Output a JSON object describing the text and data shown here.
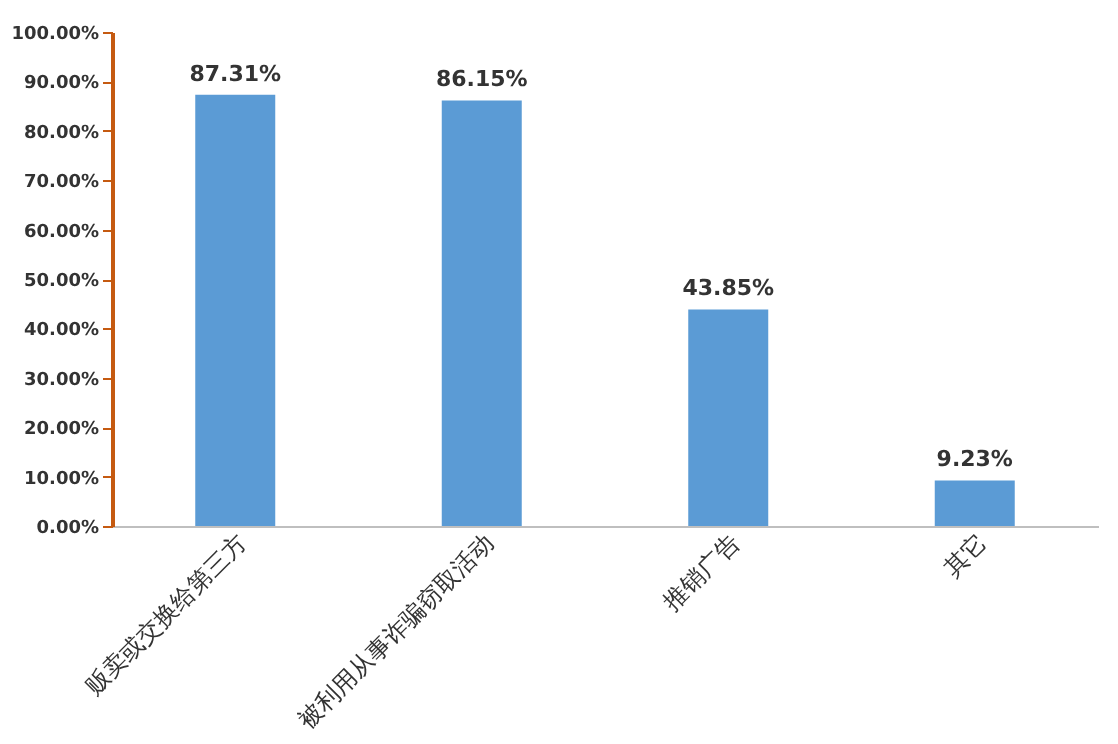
{
  "chart_data": {
    "type": "bar",
    "categories": [
      "贩卖或交换给第三方",
      "被利用从事诈骗窃取活动",
      "推销广告",
      "其它"
    ],
    "values": [
      87.31,
      86.15,
      43.85,
      9.23
    ],
    "value_labels": [
      "87.31%",
      "86.15%",
      "43.85%",
      "9.23%"
    ],
    "color": "#5b9bd5",
    "ylim": [
      0,
      100
    ],
    "yticks": [
      {
        "value": 0,
        "label": "0.00%"
      },
      {
        "value": 10,
        "label": "10.00%"
      },
      {
        "value": 20,
        "label": "20.00%"
      },
      {
        "value": 30,
        "label": "30.00%"
      },
      {
        "value": 40,
        "label": "40.00%"
      },
      {
        "value": 50,
        "label": "50.00%"
      },
      {
        "value": 60,
        "label": "60.00%"
      },
      {
        "value": 70,
        "label": "70.00%"
      },
      {
        "value": 80,
        "label": "80.00%"
      },
      {
        "value": 90,
        "label": "90.00%"
      },
      {
        "value": 100,
        "label": "100.00%"
      }
    ],
    "grid": false
  }
}
